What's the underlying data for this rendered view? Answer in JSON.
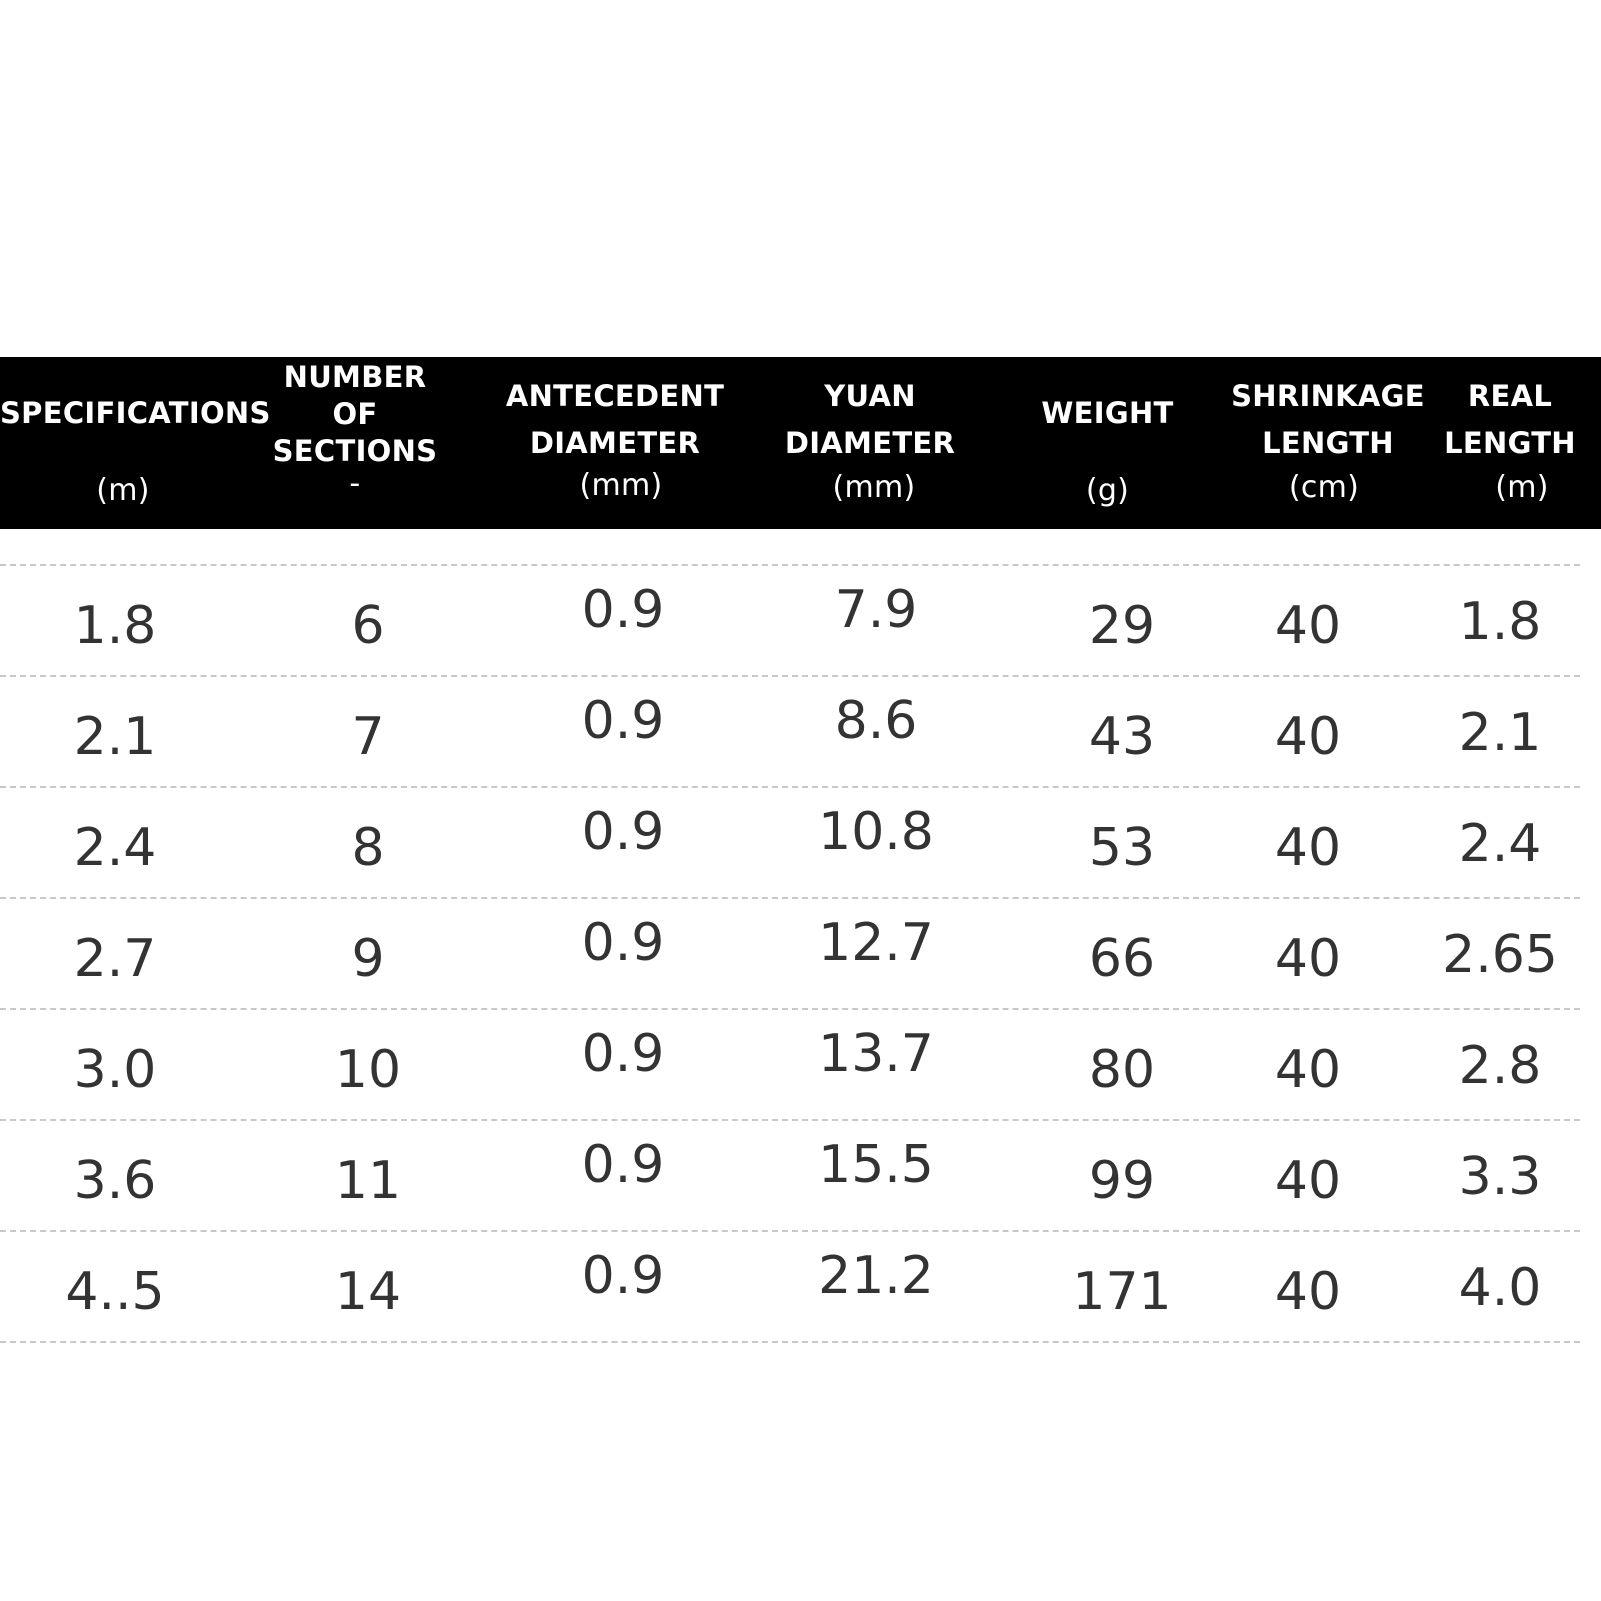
{
  "table": {
    "columns": [
      {
        "label_lines": [
          "SPECIFICATIONS"
        ],
        "unit": "(m)"
      },
      {
        "label_lines": [
          "NUMBER",
          "OF",
          "SECTIONS"
        ],
        "unit": "-"
      },
      {
        "label_lines": [
          "ANTECEDENT",
          "DIAMETER"
        ],
        "unit": "(mm)"
      },
      {
        "label_lines": [
          "YUAN",
          "DIAMETER"
        ],
        "unit": "(mm)"
      },
      {
        "label_lines": [
          "WEIGHT"
        ],
        "unit": "(g)"
      },
      {
        "label_lines": [
          "SHRINKAGE",
          "LENGTH"
        ],
        "unit": "(cm)"
      },
      {
        "label_lines": [
          "REAL",
          "LENGTH"
        ],
        "unit": "(m)"
      }
    ],
    "rows": [
      [
        "1.8",
        "6",
        "0.9",
        "7.9",
        "29",
        "40",
        "1.8"
      ],
      [
        "2.1",
        "7",
        "0.9",
        "8.6",
        "43",
        "40",
        "2.1"
      ],
      [
        "2.4",
        "8",
        "0.9",
        "10.8",
        "53",
        "40",
        "2.4"
      ],
      [
        "2.7",
        "9",
        "0.9",
        "12.7",
        "66",
        "40",
        "2.65"
      ],
      [
        "3.0",
        "10",
        "0.9",
        "13.7",
        "80",
        "40",
        "2.8"
      ],
      [
        "3.6",
        "11",
        "0.9",
        "15.5",
        "99",
        "40",
        "3.3"
      ],
      [
        "4..5",
        "14",
        "0.9",
        "21.2",
        "171",
        "40",
        "4.0"
      ]
    ]
  },
  "colors": {
    "header_background": "#000000",
    "header_text": "#ffffff",
    "cell_text": "#333333",
    "row_rule": "#c8c8c8"
  }
}
